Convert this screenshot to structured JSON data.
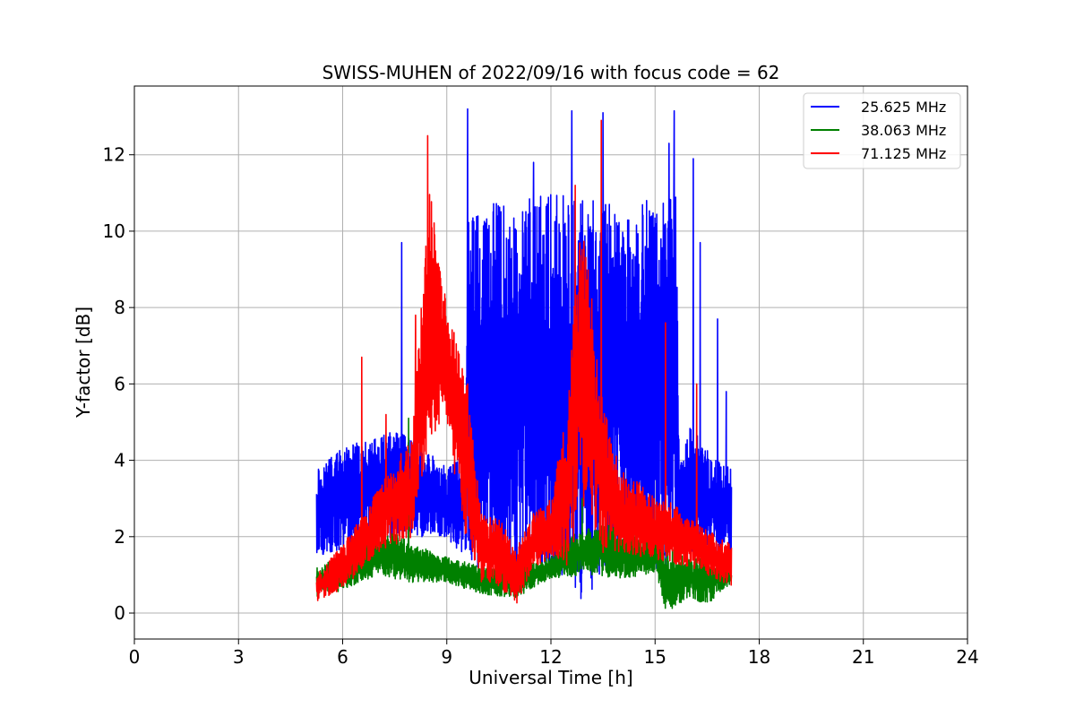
{
  "chart_data": {
    "type": "line",
    "title": "SWISS-MUHEN of 2022/09/16 with focus code = 62",
    "xlabel": "Universal Time [h]",
    "ylabel": "Y-factor [dB]",
    "xlim": [
      0,
      24
    ],
    "ylim": [
      -0.68,
      13.8
    ],
    "xticks": [
      0,
      3,
      6,
      9,
      12,
      15,
      18,
      21,
      24
    ],
    "yticks": [
      0,
      2,
      4,
      6,
      8,
      10,
      12
    ],
    "grid": true,
    "legend_position": "top-right",
    "series": [
      {
        "name": "25.625 MHz",
        "color": "#0000ff",
        "lower_envelope": [
          [
            5.25,
            1.5
          ],
          [
            6,
            1.6
          ],
          [
            7,
            1.8
          ],
          [
            8,
            2.0
          ],
          [
            9,
            2.0
          ],
          [
            9.5,
            1.4
          ],
          [
            10,
            0.9
          ],
          [
            10.5,
            0.6
          ],
          [
            11,
            0.7
          ],
          [
            12,
            0.9
          ],
          [
            12.5,
            0.8
          ],
          [
            13,
            0.2
          ],
          [
            13.5,
            1.2
          ],
          [
            14,
            1.0
          ],
          [
            15,
            1.1
          ],
          [
            15.5,
            1.2
          ],
          [
            16,
            1.6
          ],
          [
            17.2,
            1.5
          ]
        ],
        "upper_envelope": [
          [
            5.25,
            3.9
          ],
          [
            6,
            4.3
          ],
          [
            6.5,
            4.5
          ],
          [
            7,
            4.6
          ],
          [
            7.5,
            4.8
          ],
          [
            8,
            4.6
          ],
          [
            9,
            3.8
          ],
          [
            9.5,
            4.2
          ],
          [
            9.6,
            10.7
          ],
          [
            10,
            10.7
          ],
          [
            11,
            10.8
          ],
          [
            12,
            11.0
          ],
          [
            13,
            10.8
          ],
          [
            14,
            10.8
          ],
          [
            15,
            10.9
          ],
          [
            15.6,
            11.2
          ],
          [
            15.7,
            4.0
          ],
          [
            16,
            5.0
          ],
          [
            16.5,
            4.3
          ],
          [
            17.2,
            3.8
          ]
        ],
        "peaks": [
          [
            7.7,
            9.7
          ],
          [
            9.6,
            13.2
          ],
          [
            11.5,
            11.8
          ],
          [
            12.6,
            13.15
          ],
          [
            13.5,
            13.1
          ],
          [
            15.4,
            12.3
          ],
          [
            15.55,
            13.15
          ],
          [
            16.1,
            11.9
          ],
          [
            16.3,
            9.7
          ],
          [
            16.8,
            7.7
          ],
          [
            17.05,
            5.8
          ]
        ]
      },
      {
        "name": "38.063 MHz",
        "color": "#008000",
        "lower_envelope": [
          [
            5.25,
            0.4
          ],
          [
            6,
            0.6
          ],
          [
            7,
            1.0
          ],
          [
            8,
            0.8
          ],
          [
            9,
            0.8
          ],
          [
            10,
            0.5
          ],
          [
            11,
            0.4
          ],
          [
            12,
            0.9
          ],
          [
            13,
            1.0
          ],
          [
            14,
            0.9
          ],
          [
            15,
            1.0
          ],
          [
            15.3,
            0.0
          ],
          [
            16,
            0.4
          ],
          [
            16.5,
            0.2
          ],
          [
            17.2,
            0.8
          ]
        ],
        "upper_envelope": [
          [
            5.25,
            1.2
          ],
          [
            6,
            1.5
          ],
          [
            7,
            2.0
          ],
          [
            7.5,
            2.1
          ],
          [
            8,
            1.8
          ],
          [
            9,
            1.5
          ],
          [
            10,
            1.2
          ],
          [
            11,
            1.2
          ],
          [
            12,
            1.5
          ],
          [
            12.5,
            2.0
          ],
          [
            13,
            2.2
          ],
          [
            13.5,
            2.5
          ],
          [
            14,
            2.1
          ],
          [
            15,
            2.2
          ],
          [
            15.3,
            1.8
          ],
          [
            16,
            1.4
          ],
          [
            16.5,
            1.5
          ],
          [
            17.2,
            1.1
          ]
        ],
        "peaks": [
          [
            7.9,
            5.1
          ],
          [
            12.9,
            3.0
          ],
          [
            13.4,
            2.7
          ]
        ]
      },
      {
        "name": "71.125 MHz",
        "color": "#ff0000",
        "lower_envelope": [
          [
            5.25,
            0.3
          ],
          [
            6,
            0.6
          ],
          [
            7,
            1.5
          ],
          [
            8,
            2.0
          ],
          [
            8.5,
            4.5
          ],
          [
            9,
            5.0
          ],
          [
            9.5,
            2.0
          ],
          [
            10,
            0.8
          ],
          [
            10.5,
            0.7
          ],
          [
            11,
            0.2
          ],
          [
            11.5,
            1.1
          ],
          [
            12,
            1.5
          ],
          [
            12.5,
            1.2
          ],
          [
            13,
            3.0
          ],
          [
            13.5,
            1.5
          ],
          [
            14,
            1.6
          ],
          [
            15,
            1.4
          ],
          [
            16,
            1.2
          ],
          [
            17.2,
            0.7
          ]
        ],
        "upper_envelope": [
          [
            5.25,
            1.0
          ],
          [
            6,
            1.8
          ],
          [
            6.5,
            2.5
          ],
          [
            7,
            3.2
          ],
          [
            7.5,
            4.0
          ],
          [
            8,
            4.5
          ],
          [
            8.5,
            11.3
          ],
          [
            9,
            8.0
          ],
          [
            9.5,
            6.5
          ],
          [
            10,
            2.6
          ],
          [
            10.5,
            2.5
          ],
          [
            11,
            1.7
          ],
          [
            11.5,
            2.6
          ],
          [
            12,
            3.0
          ],
          [
            12.5,
            5.5
          ],
          [
            12.8,
            10.0
          ],
          [
            13,
            9.8
          ],
          [
            13.5,
            5.5
          ],
          [
            14,
            3.8
          ],
          [
            14.5,
            3.5
          ],
          [
            15,
            3.0
          ],
          [
            15.5,
            2.9
          ],
          [
            16,
            2.5
          ],
          [
            17.2,
            1.8
          ]
        ],
        "peaks": [
          [
            6.55,
            6.7
          ],
          [
            7.25,
            5.2
          ],
          [
            8.1,
            7.8
          ],
          [
            8.45,
            12.5
          ],
          [
            9.6,
            6.0
          ],
          [
            11.5,
            2.6
          ],
          [
            12.7,
            11.2
          ],
          [
            13.45,
            12.9
          ],
          [
            15.3,
            7.6
          ],
          [
            16.2,
            6.0
          ]
        ]
      }
    ]
  }
}
